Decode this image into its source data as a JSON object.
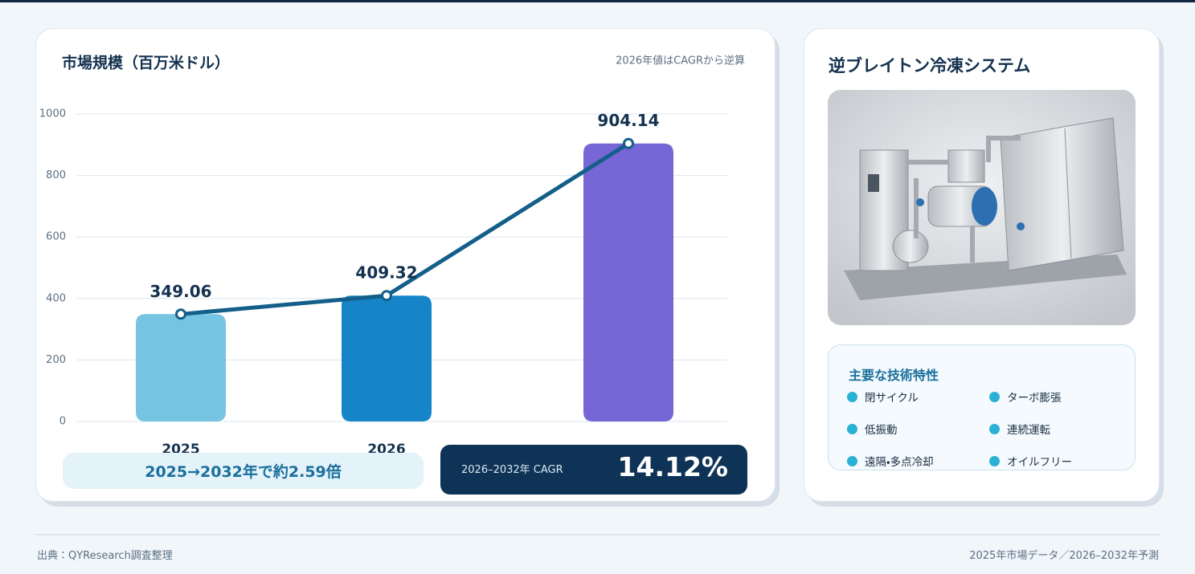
{
  "chart_data": {
    "type": "bar",
    "title": "市場規模（百万米ドル）",
    "note": "2026年値はCAGRから逆算",
    "categories": [
      "2025",
      "2026",
      null
    ],
    "values": [
      349.06,
      409.32,
      904.14
    ],
    "colors": [
      "#74c4e2",
      "#1585c8",
      "#7766d6"
    ],
    "line": true,
    "line_color": "#145f8a",
    "ylim": [
      0,
      1000
    ],
    "yticks": [
      0,
      200,
      400,
      600,
      800,
      1000
    ],
    "grid": true
  },
  "badges": {
    "multiple": "2025→2032年で約2.59倍",
    "cagr_label": "2026–2032年 CAGR",
    "cagr_value": "14.12%"
  },
  "side": {
    "title": "逆ブレイトン冷凍システム",
    "features_title": "主要な技術特性",
    "features": [
      "閉サイクル",
      "ターボ膨張",
      "低振動",
      "連続運転",
      "遠隔・多点冷却",
      "オイルフリー"
    ]
  },
  "footer": {
    "source": "出典：QYResearch調査整理",
    "scope": "2025年市場データ／2026–2032年予測"
  }
}
